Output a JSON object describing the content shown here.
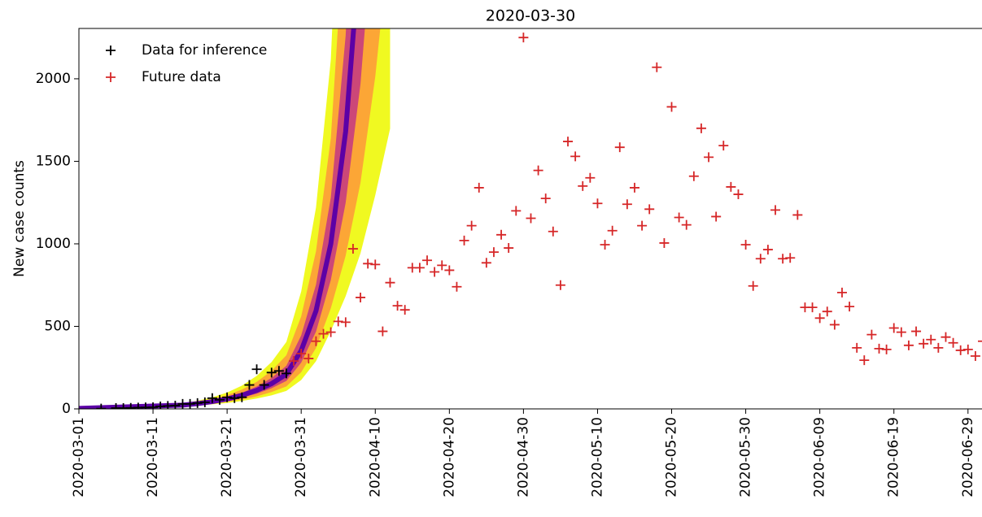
{
  "chart_data": {
    "type": "scatter",
    "title": "2020-03-30",
    "y_label": "New case counts",
    "xlim": [
      "2020-03-01",
      "2020-07-01"
    ],
    "ylim": [
      0,
      2305
    ],
    "xticks": [
      "2020-03-01",
      "2020-03-11",
      "2020-03-21",
      "2020-03-31",
      "2020-04-10",
      "2020-04-20",
      "2020-04-30",
      "2020-05-10",
      "2020-05-20",
      "2020-05-30",
      "2020-06-09",
      "2020-06-19",
      "2020-06-29"
    ],
    "yticks": [
      0,
      500,
      1000,
      1500,
      2000
    ],
    "legend": "upper left",
    "series": [
      {
        "name": "Data for inference",
        "color": "#000000",
        "marker": "+",
        "x": [
          "2020-03-04",
          "2020-03-06",
          "2020-03-07",
          "2020-03-08",
          "2020-03-09",
          "2020-03-10",
          "2020-03-11",
          "2020-03-12",
          "2020-03-13",
          "2020-03-14",
          "2020-03-15",
          "2020-03-16",
          "2020-03-17",
          "2020-03-18",
          "2020-03-19",
          "2020-03-20",
          "2020-03-21",
          "2020-03-22",
          "2020-03-23",
          "2020-03-24",
          "2020-03-25",
          "2020-03-26",
          "2020-03-27",
          "2020-03-28",
          "2020-03-29"
        ],
        "values": [
          2,
          5,
          5,
          6,
          8,
          9,
          10,
          15,
          18,
          20,
          30,
          30,
          35,
          40,
          65,
          55,
          70,
          65,
          70,
          145,
          240,
          145,
          220,
          230,
          215
        ]
      },
      {
        "name": "Future data",
        "color": "#d62728",
        "marker": "+",
        "x": [
          "2020-03-30",
          "2020-03-31",
          "2020-04-01",
          "2020-04-02",
          "2020-04-03",
          "2020-04-04",
          "2020-04-05",
          "2020-04-06",
          "2020-04-07",
          "2020-04-08",
          "2020-04-09",
          "2020-04-10",
          "2020-04-11",
          "2020-04-12",
          "2020-04-13",
          "2020-04-14",
          "2020-04-15",
          "2020-04-16",
          "2020-04-17",
          "2020-04-18",
          "2020-04-19",
          "2020-04-20",
          "2020-04-21",
          "2020-04-22",
          "2020-04-23",
          "2020-04-24",
          "2020-04-25",
          "2020-04-26",
          "2020-04-27",
          "2020-04-28",
          "2020-04-29",
          "2020-04-30",
          "2020-05-01",
          "2020-05-02",
          "2020-05-03",
          "2020-05-04",
          "2020-05-05",
          "2020-05-06",
          "2020-05-07",
          "2020-05-08",
          "2020-05-09",
          "2020-05-10",
          "2020-05-11",
          "2020-05-12",
          "2020-05-13",
          "2020-05-14",
          "2020-05-15",
          "2020-05-16",
          "2020-05-17",
          "2020-05-18",
          "2020-05-19",
          "2020-05-20",
          "2020-05-21",
          "2020-05-22",
          "2020-05-23",
          "2020-05-24",
          "2020-05-25",
          "2020-05-26",
          "2020-05-27",
          "2020-05-28",
          "2020-05-29",
          "2020-05-30",
          "2020-05-31",
          "2020-06-01",
          "2020-06-02",
          "2020-06-03",
          "2020-06-04",
          "2020-06-05",
          "2020-06-06",
          "2020-06-07",
          "2020-06-08",
          "2020-06-09",
          "2020-06-10",
          "2020-06-11",
          "2020-06-12",
          "2020-06-13",
          "2020-06-14",
          "2020-06-15",
          "2020-06-16",
          "2020-06-17",
          "2020-06-18",
          "2020-06-19",
          "2020-06-20",
          "2020-06-21",
          "2020-06-22",
          "2020-06-23",
          "2020-06-24",
          "2020-06-25",
          "2020-06-26",
          "2020-06-27",
          "2020-06-28",
          "2020-06-29",
          "2020-06-30",
          "2020-07-01"
        ],
        "values": [
          290,
          335,
          305,
          410,
          455,
          465,
          530,
          525,
          970,
          675,
          880,
          875,
          470,
          765,
          625,
          600,
          855,
          855,
          900,
          830,
          870,
          840,
          740,
          1020,
          1110,
          1340,
          885,
          950,
          1055,
          975,
          1200,
          2250,
          1155,
          1445,
          1275,
          1075,
          750,
          1620,
          1530,
          1350,
          1400,
          1245,
          995,
          1080,
          1585,
          1240,
          1340,
          1110,
          1210,
          2070,
          1005,
          1830,
          1160,
          1115,
          1410,
          1700,
          1525,
          1165,
          1595,
          1345,
          1300,
          995,
          745,
          910,
          965,
          1205,
          910,
          915,
          1175,
          615,
          615,
          550,
          590,
          510,
          705,
          620,
          370,
          295,
          450,
          365,
          360,
          490,
          465,
          385,
          470,
          395,
          420,
          370,
          435,
          400,
          355,
          360,
          320,
          410
        ]
      }
    ],
    "fan": {
      "x": [
        "2020-03-01",
        "2020-03-15",
        "2020-03-17",
        "2020-03-19",
        "2020-03-21",
        "2020-03-23",
        "2020-03-25",
        "2020-03-27",
        "2020-03-29",
        "2020-03-31",
        "2020-04-02",
        "2020-04-04",
        "2020-04-06",
        "2020-04-08",
        "2020-04-10",
        "2020-04-12"
      ],
      "bands": [
        {
          "color": "#f0f921",
          "lower": [
            2,
            15,
            21,
            28,
            36,
            48,
            63,
            82,
            109,
            175,
            289,
            472,
            683,
            942,
            1295,
            1698
          ],
          "upper": [
            4,
            34,
            49,
            70,
            99,
            141,
            200,
            284,
            406,
            711,
            1220,
            2117,
            4133,
            8501,
            17428,
            37688
          ]
        },
        {
          "color": "#fca636",
          "lower": [
            2,
            18,
            24,
            32,
            43,
            57,
            76,
            102,
            136,
            222,
            369,
            610,
            928,
            1369,
            2014,
            2877
          ],
          "upper": [
            4,
            30,
            42,
            60,
            83,
            117,
            164,
            230,
            325,
            560,
            955,
            1640,
            3042,
            5850,
            11201,
            22248
          ]
        },
        {
          "color": "#cc4778",
          "lower": [
            3,
            20,
            28,
            38,
            51,
            69,
            92,
            125,
            169,
            280,
            468,
            781,
            1248,
            1968,
            3092,
            4796
          ],
          "upper": [
            3,
            26,
            37,
            51,
            71,
            98,
            136,
            188,
            261,
            445,
            753,
            1281,
            2261,
            4070,
            7296,
            13344
          ]
        }
      ],
      "median": {
        "color": "#5c01a6",
        "values": [
          3,
          23,
          32,
          44,
          60,
          82,
          112,
          153,
          210,
          353,
          594,
          1000,
          1680,
          2830,
          4750,
          8000
        ]
      }
    }
  }
}
